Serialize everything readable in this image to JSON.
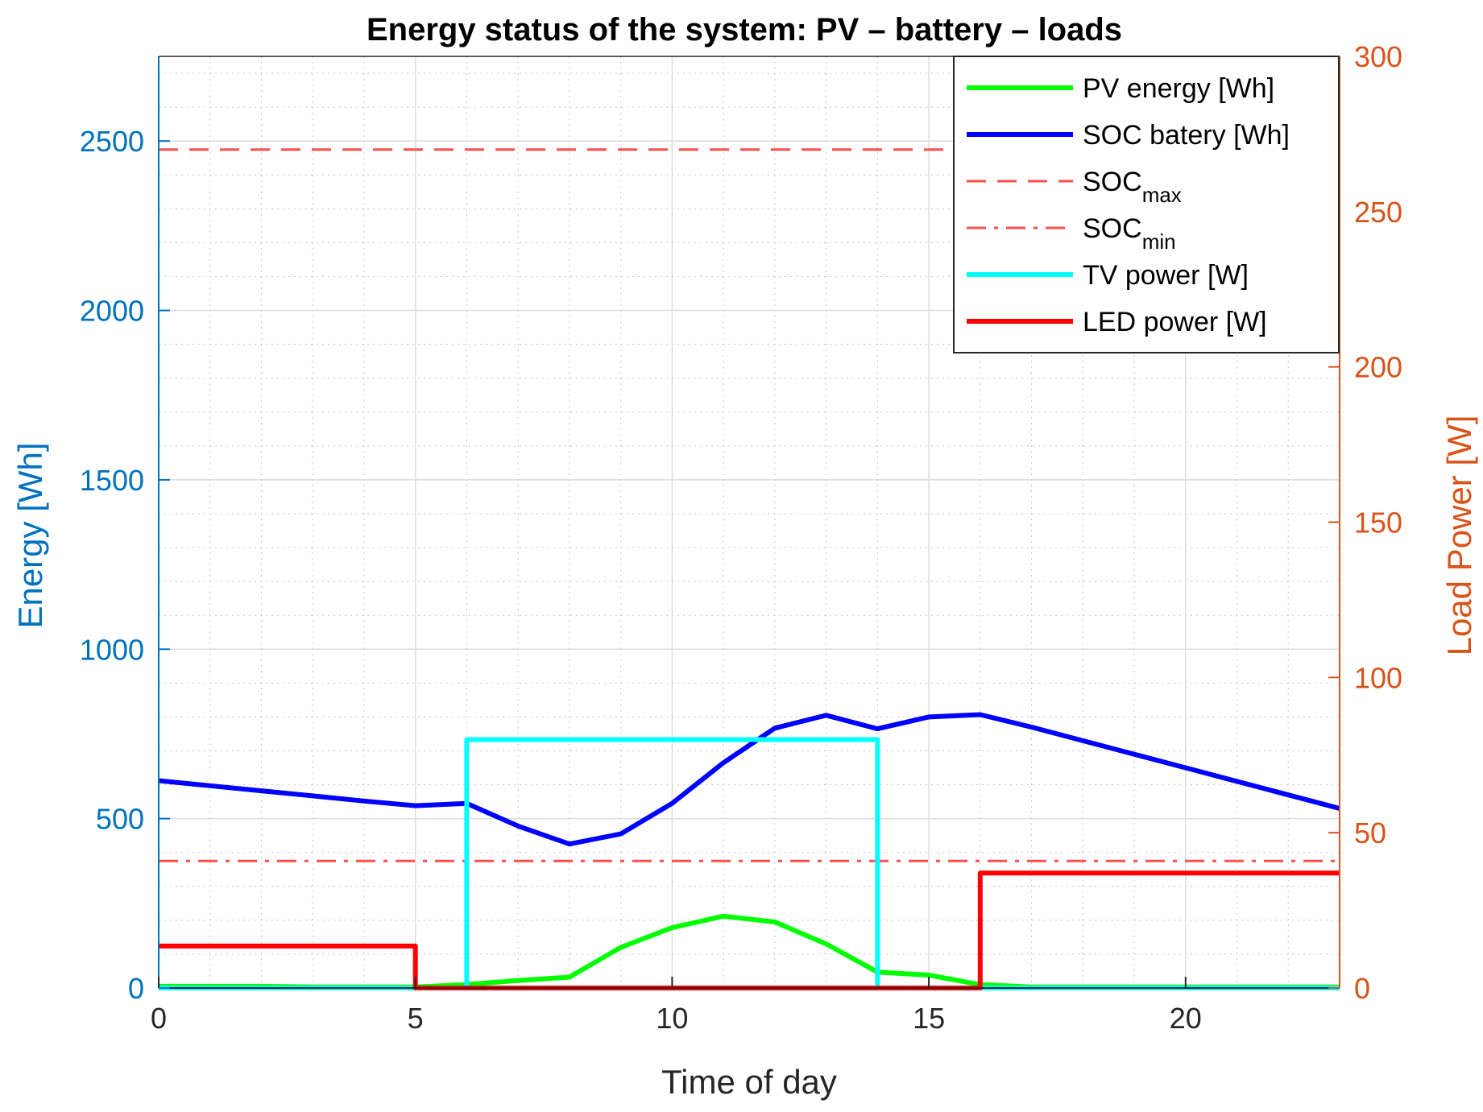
{
  "chart_data": {
    "type": "line",
    "title": "Energy status of the system: PV – battery – loads",
    "xlabel": "Time of day",
    "ylabel_left": "Energy [Wh]",
    "ylabel_right": "Load Power [W]",
    "xlim": [
      0,
      23
    ],
    "ylim_left": [
      0,
      2750
    ],
    "ylim_right": [
      0,
      300
    ],
    "xticks": [
      0,
      5,
      10,
      15,
      20
    ],
    "yticks_left": [
      0,
      500,
      1000,
      1500,
      2000,
      2500
    ],
    "yticks_right": [
      0,
      50,
      100,
      150,
      200,
      250,
      300
    ],
    "grid": true,
    "minor_grid": true,
    "legend_position": "top-right",
    "axis_colors": {
      "left": "#0072BD",
      "right": "#D95319"
    },
    "series": [
      {
        "name": "PV energy [Wh]",
        "axis": "left",
        "color": "#00FF00",
        "style": "solid",
        "x": [
          0,
          1,
          2,
          3,
          4,
          5,
          6,
          7,
          8,
          9,
          10,
          11,
          12,
          13,
          14,
          15,
          16,
          17,
          18,
          19,
          20,
          21,
          22,
          23
        ],
        "y": [
          5,
          5,
          5,
          3,
          3,
          3,
          10,
          22,
          32,
          120,
          178,
          212,
          195,
          130,
          47,
          38,
          10,
          3,
          3,
          3,
          3,
          3,
          3,
          3
        ]
      },
      {
        "name": "SOC batery [Wh]",
        "axis": "left",
        "color": "#0000FF",
        "style": "solid",
        "x": [
          0,
          1,
          2,
          3,
          4,
          5,
          6,
          7,
          8,
          9,
          10,
          11,
          12,
          13,
          14,
          15,
          16,
          17,
          18,
          19,
          20,
          21,
          22,
          23
        ],
        "y": [
          612,
          597,
          582,
          567,
          552,
          538,
          545,
          478,
          425,
          455,
          545,
          665,
          767,
          805,
          765,
          800,
          807,
          770,
          730,
          690,
          650,
          610,
          570,
          530
        ]
      },
      {
        "name": "SOC",
        "sub": "max",
        "axis": "left",
        "color": "#FF4D4D",
        "style": "dashed",
        "x": [
          0,
          23
        ],
        "y": [
          2475,
          2475
        ]
      },
      {
        "name": "SOC",
        "sub": "min",
        "axis": "left",
        "color": "#FF4D4D",
        "style": "dashdot",
        "x": [
          0,
          23
        ],
        "y": [
          375,
          375
        ]
      },
      {
        "name": "TV power [W]",
        "axis": "right",
        "color": "#00FFFF",
        "style": "step",
        "x": [
          0,
          6,
          6,
          14,
          14,
          23
        ],
        "y": [
          0,
          0,
          80,
          80,
          0,
          0
        ]
      },
      {
        "name": "LED power [W]",
        "axis": "right",
        "color": "#FF0000",
        "style": "step",
        "x": [
          0,
          5,
          5,
          16,
          16,
          23
        ],
        "y": [
          13.5,
          13.5,
          0,
          0,
          37,
          37
        ]
      }
    ]
  }
}
